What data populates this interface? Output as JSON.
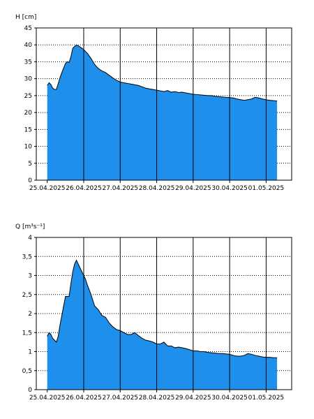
{
  "colors": {
    "area": "#1e90ec",
    "outline": "#000000",
    "grid": "#000000",
    "background": "#ffffff"
  },
  "chart_data": [
    {
      "type": "area",
      "ylabel": "H [cm]",
      "ylim": [
        0,
        45
      ],
      "yticks": [
        "0",
        "5",
        "10",
        "15",
        "20",
        "25",
        "30",
        "35",
        "40",
        "45"
      ],
      "x_dates": [
        "25.04.2025",
        "26.04.2025",
        "27.04.2025",
        "28.04.2025",
        "29.04.2025",
        "30.04.2025",
        "01.05.2025"
      ],
      "xlim_days": [
        -0.3,
        6.7
      ],
      "grid": {
        "y": "dotted",
        "x_midnight": "solid"
      },
      "series": [
        {
          "x_days": [
            0.0,
            0.05,
            0.1,
            0.15,
            0.2,
            0.25,
            0.3,
            0.35,
            0.4,
            0.5,
            0.55,
            0.6,
            0.65,
            0.7,
            0.8,
            0.85,
            0.9,
            0.95,
            1.0,
            1.1,
            1.2,
            1.3,
            1.4,
            1.5,
            1.6,
            1.7,
            1.8,
            1.9,
            2.0,
            2.1,
            2.2,
            2.3,
            2.4,
            2.5,
            2.6,
            2.7,
            2.8,
            2.9,
            3.0,
            3.1,
            3.2,
            3.3,
            3.4,
            3.5,
            3.6,
            3.7,
            3.8,
            3.9,
            4.0,
            4.1,
            4.2,
            4.3,
            4.4,
            4.5,
            4.6,
            4.7,
            4.8,
            4.9,
            5.0,
            5.1,
            5.2,
            5.3,
            5.4,
            5.5,
            5.6,
            5.7,
            5.8,
            5.9,
            6.0,
            6.1,
            6.2,
            6.3
          ],
          "values": [
            28,
            28.8,
            28.3,
            27.2,
            26.8,
            26.8,
            28.5,
            30.3,
            31.8,
            34.5,
            35.0,
            34.8,
            36.5,
            39.0,
            40.0,
            39.7,
            39.4,
            39.0,
            38.6,
            37.5,
            36.0,
            34.2,
            33.0,
            32.3,
            31.8,
            31.0,
            30.2,
            29.5,
            29.0,
            28.8,
            28.6,
            28.4,
            28.2,
            28.0,
            27.6,
            27.2,
            27.0,
            26.8,
            26.6,
            26.4,
            26.2,
            26.5,
            26.0,
            26.2,
            25.9,
            26.0,
            25.8,
            25.6,
            25.4,
            25.3,
            25.2,
            25.1,
            25.0,
            25.0,
            24.8,
            24.7,
            24.6,
            24.5,
            24.4,
            24.3,
            24.0,
            23.8,
            23.6,
            23.8,
            24.0,
            24.5,
            24.3,
            24.0,
            23.8,
            23.6,
            23.5,
            23.4
          ]
        }
      ]
    },
    {
      "type": "area",
      "ylabel": "Q [m³s⁻¹]",
      "ylim": [
        0,
        4
      ],
      "yticks": [
        "0",
        "0,5",
        "1",
        "1,5",
        "2",
        "2,5",
        "3",
        "3,5",
        "4"
      ],
      "x_dates": [
        "25.04.2025",
        "26.04.2025",
        "27.04.2025",
        "28.04.2025",
        "29.04.2025",
        "30.04.2025",
        "01.05.2025"
      ],
      "xlim_days": [
        -0.3,
        6.7
      ],
      "grid": {
        "y": "dotted",
        "x_midnight": "solid"
      },
      "series": [
        {
          "x_days": [
            0.0,
            0.05,
            0.1,
            0.15,
            0.2,
            0.25,
            0.3,
            0.35,
            0.4,
            0.45,
            0.5,
            0.55,
            0.6,
            0.65,
            0.7,
            0.75,
            0.8,
            0.85,
            0.9,
            0.95,
            1.0,
            1.05,
            1.1,
            1.2,
            1.3,
            1.4,
            1.5,
            1.6,
            1.7,
            1.8,
            1.9,
            2.0,
            2.1,
            2.2,
            2.3,
            2.4,
            2.5,
            2.6,
            2.7,
            2.8,
            2.9,
            3.0,
            3.1,
            3.2,
            3.3,
            3.4,
            3.5,
            3.6,
            3.7,
            3.8,
            3.9,
            4.0,
            4.1,
            4.2,
            4.3,
            4.4,
            4.5,
            4.6,
            4.7,
            4.8,
            4.9,
            5.0,
            5.1,
            5.2,
            5.3,
            5.4,
            5.5,
            5.6,
            5.7,
            5.8,
            5.9,
            6.0,
            6.1,
            6.2,
            6.3
          ],
          "values": [
            1.4,
            1.5,
            1.45,
            1.35,
            1.3,
            1.25,
            1.4,
            1.7,
            1.95,
            2.2,
            2.45,
            2.45,
            2.45,
            2.8,
            3.1,
            3.3,
            3.4,
            3.3,
            3.2,
            3.1,
            3.0,
            2.9,
            2.75,
            2.5,
            2.2,
            2.1,
            1.95,
            1.9,
            1.75,
            1.65,
            1.58,
            1.55,
            1.5,
            1.45,
            1.45,
            1.5,
            1.42,
            1.35,
            1.3,
            1.28,
            1.25,
            1.2,
            1.2,
            1.25,
            1.15,
            1.15,
            1.1,
            1.12,
            1.1,
            1.08,
            1.05,
            1.02,
            1.02,
            1.0,
            1.0,
            0.98,
            0.97,
            0.96,
            0.95,
            0.95,
            0.94,
            0.93,
            0.9,
            0.88,
            0.88,
            0.9,
            0.95,
            0.93,
            0.9,
            0.88,
            0.86,
            0.85,
            0.85,
            0.84,
            0.84
          ]
        }
      ]
    }
  ]
}
